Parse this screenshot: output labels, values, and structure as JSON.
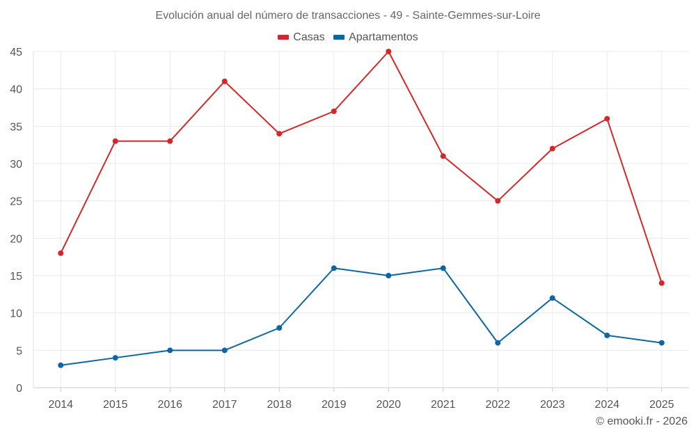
{
  "chart_data": {
    "type": "line",
    "title": "Evolución anual del número de transacciones - 49 - Sainte-Gemmes-sur-Loire",
    "categories": [
      "2014",
      "2015",
      "2016",
      "2017",
      "2018",
      "2019",
      "2020",
      "2021",
      "2022",
      "2023",
      "2024",
      "2025"
    ],
    "series": [
      {
        "name": "Casas",
        "color": "#d62728",
        "values": [
          18,
          33,
          33,
          41,
          34,
          37,
          45,
          31,
          25,
          32,
          36,
          14
        ]
      },
      {
        "name": "Apartamentos",
        "color": "#0a67a3",
        "values": [
          3,
          4,
          5,
          5,
          8,
          16,
          15,
          16,
          6,
          12,
          7,
          6
        ]
      }
    ],
    "ylim": [
      0,
      45
    ],
    "yticks": [
      0,
      5,
      10,
      15,
      20,
      25,
      30,
      35,
      40,
      45
    ],
    "xlabel": "",
    "ylabel": "",
    "grid": true,
    "legend": "top-center"
  },
  "credit": "© emooki.fr - 2026"
}
